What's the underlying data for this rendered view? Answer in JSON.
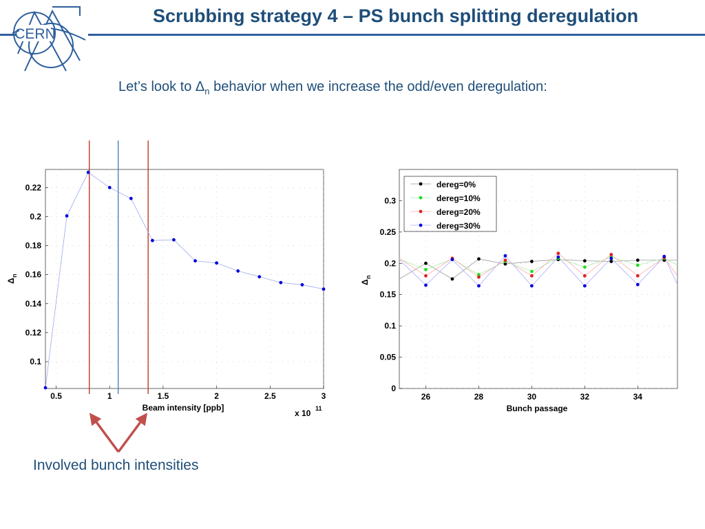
{
  "slide": {
    "title": "Scrubbing strategy 4 – PS bunch splitting deregulation",
    "logo_text": "CERN",
    "subtitle_pre": "Let’s look to Δ",
    "subtitle_sub": "n",
    "subtitle_post": " behavior when we increase the odd/even deregulation:",
    "bottom_note": "Involved bunch intensities"
  },
  "colors": {
    "title": "#1f4e79",
    "rule": "#2e5f9e",
    "marker_red": "#c0392b",
    "marker_blue": "#4f7fc0",
    "arrow": "#c0504d"
  },
  "chart_data": [
    {
      "type": "line",
      "xlabel": "Beam intensity [ppb]",
      "ylabel": "Δ",
      "ylabel_sub": "n",
      "x_multiplier_label": "x 10",
      "x_multiplier_exp": "11",
      "xlim": [
        0.4,
        3.0
      ],
      "ylim": [
        0.0815,
        0.2325
      ],
      "xticks": [
        0.5,
        1,
        1.5,
        2,
        2.5,
        3
      ],
      "xtick_labels": [
        "0.5",
        "1",
        "1.5",
        "2",
        "2.5",
        "3"
      ],
      "yticks": [
        0.1,
        0.12,
        0.14,
        0.16,
        0.18,
        0.2,
        0.22
      ],
      "ytick_labels": [
        "0.1",
        "0.12",
        "0.14",
        "0.16",
        "0.18",
        "0.2",
        "0.22"
      ],
      "series": [
        {
          "name": "Delta_n",
          "color": "#0000dd",
          "x": [
            0.4,
            0.6,
            0.8,
            1.0,
            1.2,
            1.4,
            1.6,
            1.8,
            2.0,
            2.2,
            2.4,
            2.6,
            2.8,
            3.0
          ],
          "y": [
            0.082,
            0.2005,
            0.2305,
            0.22,
            0.2125,
            0.1835,
            0.184,
            0.1695,
            0.168,
            0.1625,
            0.1585,
            0.1545,
            0.153,
            0.15
          ]
        }
      ],
      "annotations": {
        "vertical_markers": [
          {
            "x": 0.81,
            "color": "#c0392b",
            "label": "red-line-1"
          },
          {
            "x": 1.08,
            "color": "#4f7fc0",
            "label": "blue-line"
          },
          {
            "x": 1.36,
            "color": "#c0392b",
            "label": "red-line-2"
          }
        ],
        "grid": "dotted"
      }
    },
    {
      "type": "line",
      "xlabel": "Bunch passage",
      "ylabel": "Δ",
      "ylabel_sub": "n",
      "xlim": [
        25,
        35.5
      ],
      "ylim": [
        0,
        0.35
      ],
      "xticks": [
        26,
        28,
        30,
        32,
        34
      ],
      "xtick_labels": [
        "26",
        "28",
        "30",
        "32",
        "34"
      ],
      "yticks": [
        0,
        0.05,
        0.1,
        0.15,
        0.2,
        0.25,
        0.3
      ],
      "ytick_labels": [
        "0",
        "0.05",
        "0.1",
        "0.15",
        "0.2",
        "0.25",
        "0.3"
      ],
      "legend_position": "top-left",
      "x": [
        26,
        27,
        28,
        29,
        30,
        31,
        32,
        33,
        34,
        35
      ],
      "series": [
        {
          "name": "dereg=0%",
          "color": "#000000",
          "values": [
            0.2,
            0.175,
            0.207,
            0.199,
            0.203,
            0.206,
            0.204,
            0.203,
            0.205,
            0.205
          ]
        },
        {
          "name": "dereg=10%",
          "color": "#22dd22",
          "values": [
            0.19,
            0.207,
            0.182,
            0.203,
            0.187,
            0.208,
            0.194,
            0.21,
            0.197,
            0.208
          ]
        },
        {
          "name": "dereg=20%",
          "color": "#dd2222",
          "values": [
            0.18,
            0.208,
            0.178,
            0.205,
            0.18,
            0.216,
            0.18,
            0.214,
            0.18,
            0.209
          ]
        },
        {
          "name": "dereg=30%",
          "color": "#0000dd",
          "values": [
            0.165,
            0.206,
            0.164,
            0.212,
            0.164,
            0.21,
            0.164,
            0.208,
            0.166,
            0.211
          ]
        }
      ]
    }
  ]
}
